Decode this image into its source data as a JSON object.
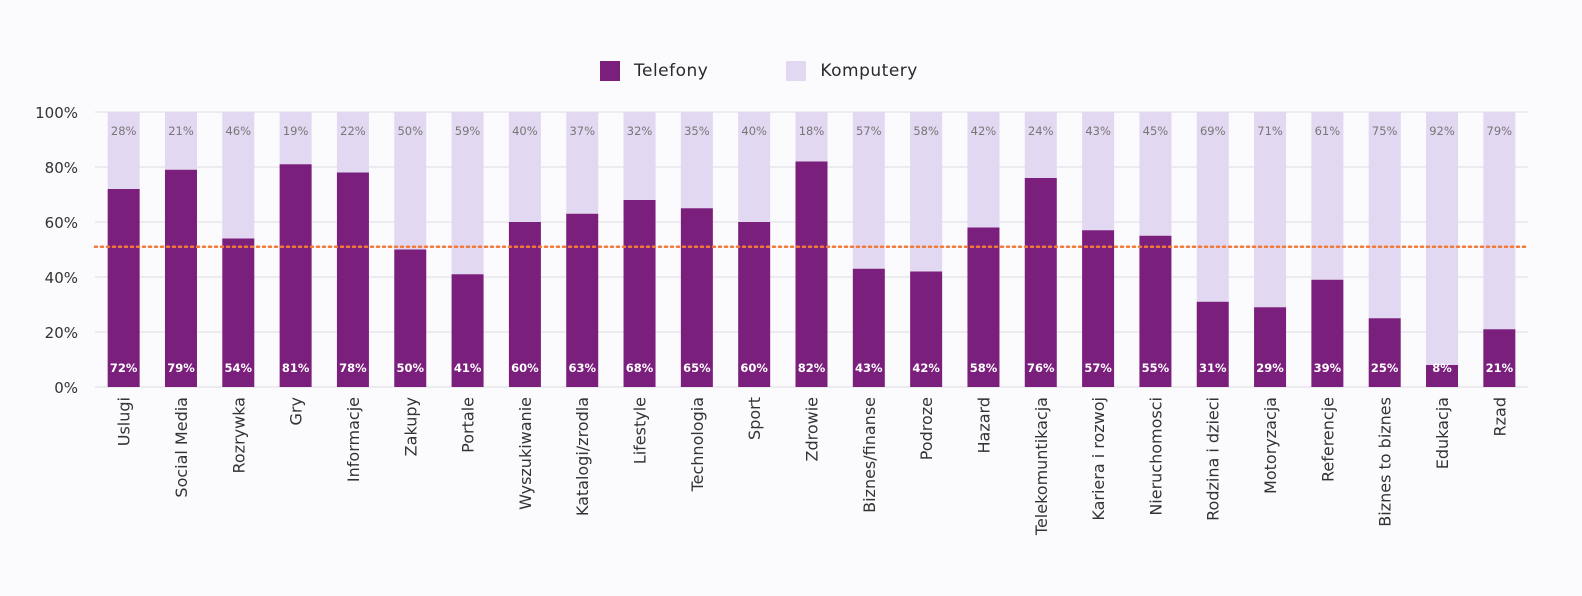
{
  "legend": {
    "phones_label": "Telefony",
    "computers_label": "Komputery"
  },
  "colors": {
    "phones": "#7b1f7d",
    "computers": "#e3d8f1",
    "average_line": "#f07a3a",
    "grid": "#dcdce2",
    "axis_text": "#333333",
    "top_label": "#777777",
    "bottom_label": "#ffffff"
  },
  "chart_data": {
    "type": "bar",
    "stacked": true,
    "categories": [
      "Uslugi",
      "Social Media",
      "Rozrywka",
      "Gry",
      "Informacje",
      "Zakupy",
      "Portale",
      "Wyszukiwanie",
      "Katalogi/zrodla",
      "Lifestyle",
      "Technologia",
      "Sport",
      "Zdrowie",
      "Biznes/finanse",
      "Podroze",
      "Hazard",
      "Telekomuntikacja",
      "Kariera i rozwoj",
      "Nieruchomosci",
      "Rodzina i dzieci",
      "Motoryzacja",
      "Referencje",
      "Biznes to biznes",
      "Edukacja",
      "Rzad"
    ],
    "series": [
      {
        "name": "Telefony",
        "values": [
          72,
          79,
          54,
          81,
          78,
          50,
          41,
          60,
          63,
          68,
          65,
          60,
          82,
          43,
          42,
          58,
          76,
          57,
          55,
          31,
          29,
          39,
          25,
          8,
          21
        ],
        "labels": [
          "72%",
          "79%",
          "54%",
          "81%",
          "78%",
          "50%",
          "41%",
          "60%",
          "63%",
          "68%",
          "65%",
          "60%",
          "82%",
          "43%",
          "42%",
          "58%",
          "76%",
          "57%",
          "55%",
          "31%",
          "29%",
          "39%",
          "25%",
          "8%",
          "21%"
        ]
      },
      {
        "name": "Komputery",
        "values": [
          28,
          21,
          46,
          19,
          22,
          50,
          59,
          40,
          37,
          32,
          35,
          40,
          18,
          57,
          58,
          42,
          24,
          43,
          45,
          69,
          71,
          61,
          75,
          92,
          79
        ],
        "labels": [
          "28%",
          "21%",
          "46%",
          "19%",
          "22%",
          "50%",
          "59%",
          "40%",
          "37%",
          "32%",
          "35%",
          "40%",
          "18%",
          "57%",
          "58%",
          "42%",
          "24%",
          "43%",
          "45%",
          "69%",
          "71%",
          "61%",
          "75%",
          "92%",
          "79%"
        ]
      }
    ],
    "average_line_value": 51,
    "ylim": [
      0,
      100
    ],
    "yticks": [
      0,
      20,
      40,
      60,
      80,
      100
    ],
    "ytick_labels": [
      "0%",
      "20%",
      "40%",
      "60%",
      "80%",
      "100%"
    ],
    "grid": true,
    "legend_position": "top-center",
    "xlabel_rotation": "vertical"
  }
}
